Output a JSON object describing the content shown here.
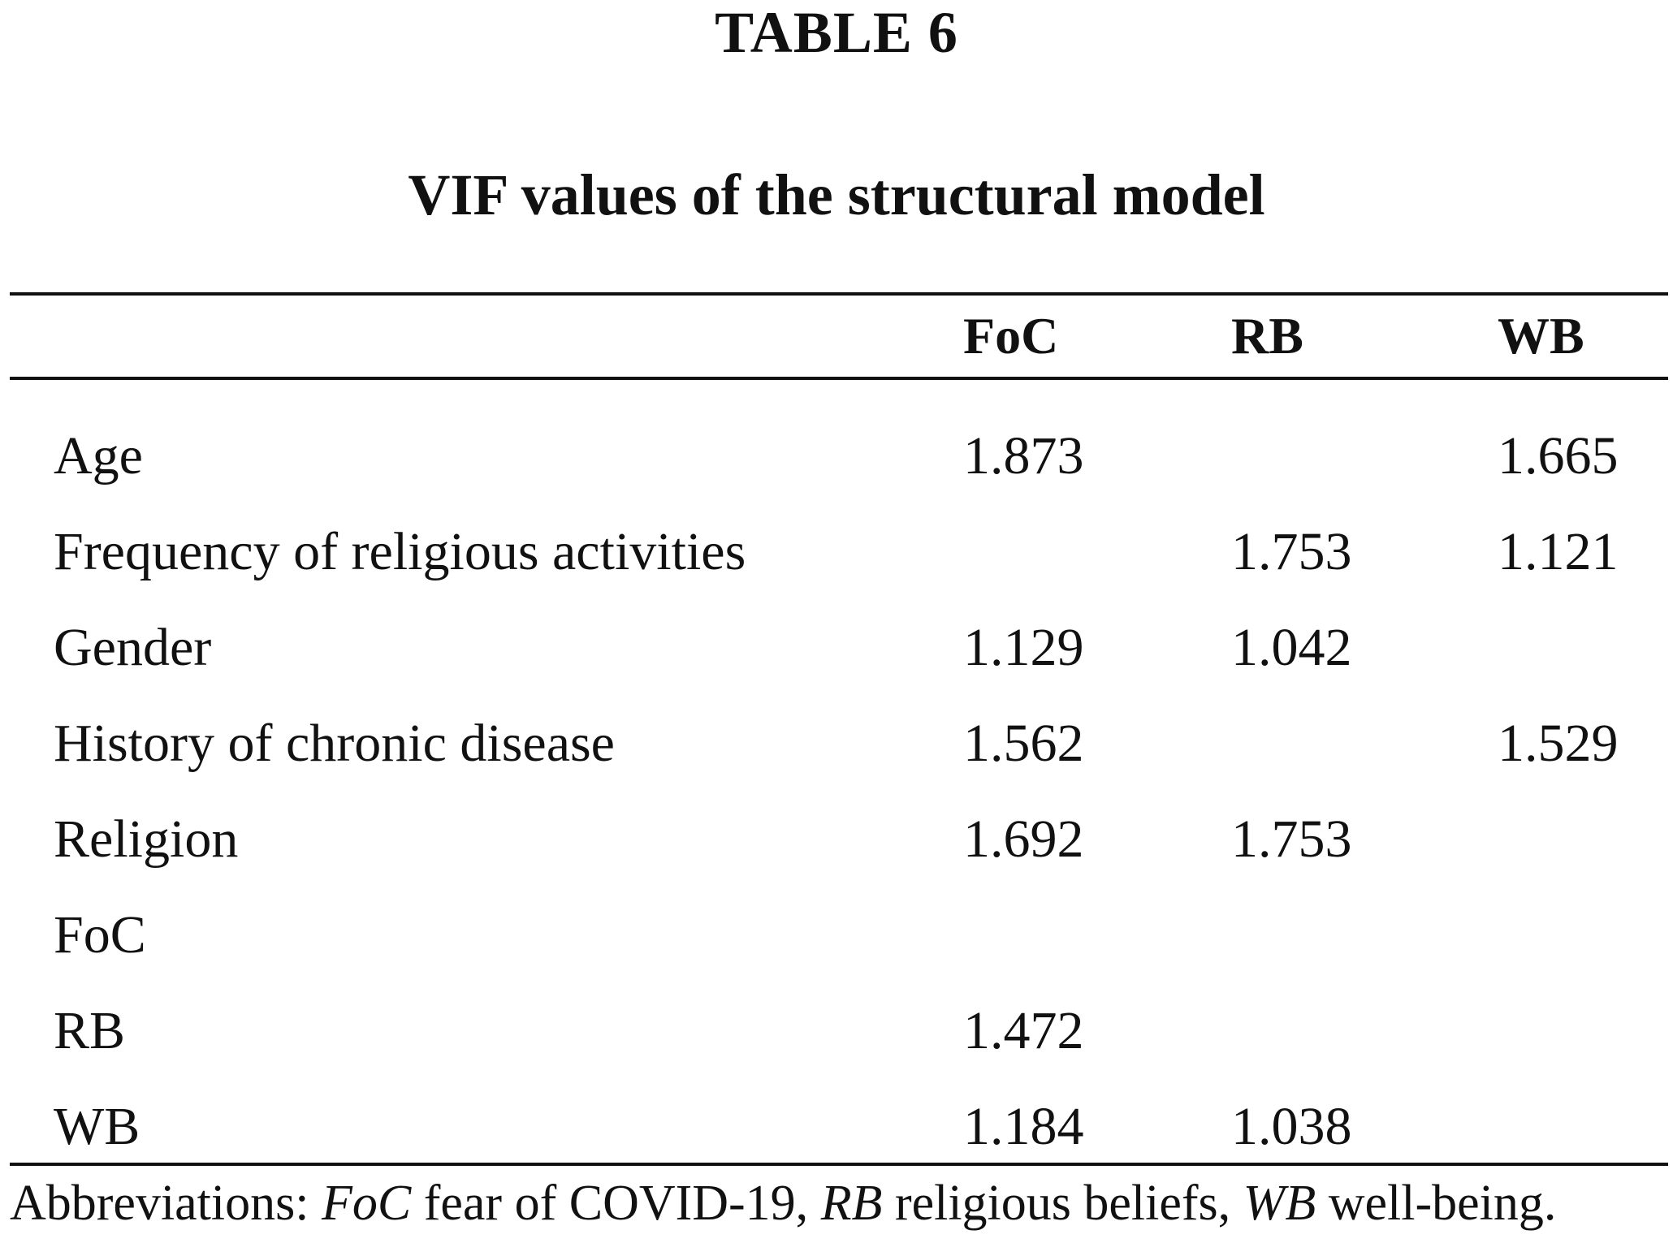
{
  "table_label": "TABLE 6",
  "table_title": "VIF values of the structural model",
  "columns": [
    "FoC",
    "RB",
    "WB"
  ],
  "rows": [
    {
      "label": "Age",
      "values": [
        "1.873",
        "",
        "1.665"
      ]
    },
    {
      "label": "Frequency of religious activities",
      "values": [
        "",
        "1.753",
        "1.121"
      ]
    },
    {
      "label": "Gender",
      "values": [
        "1.129",
        "1.042",
        ""
      ]
    },
    {
      "label": "History of chronic disease",
      "values": [
        "1.562",
        "",
        "1.529"
      ]
    },
    {
      "label": "Religion",
      "values": [
        "1.692",
        "1.753",
        ""
      ]
    },
    {
      "label": "FoC",
      "values": [
        "",
        "",
        ""
      ]
    },
    {
      "label": "RB",
      "values": [
        "1.472",
        "",
        ""
      ]
    },
    {
      "label": "WB",
      "values": [
        "1.184",
        "1.038",
        ""
      ]
    }
  ],
  "footnote": {
    "prefix": "Abbreviations: ",
    "items": [
      {
        "abbr": "FoC",
        "text": " fear of COVID-19, "
      },
      {
        "abbr": "RB",
        "text": " religious beliefs, "
      },
      {
        "abbr": "WB",
        "text": " well-being."
      }
    ]
  }
}
